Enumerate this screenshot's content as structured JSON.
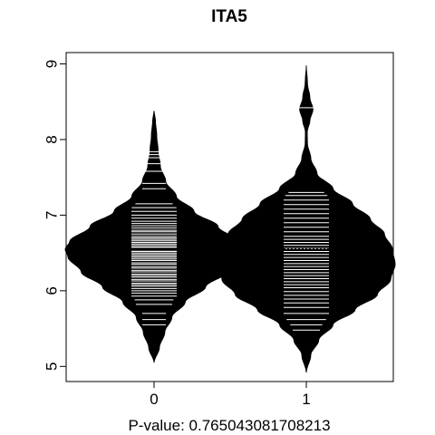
{
  "chart_data": {
    "type": "beanplot",
    "title": "ITA5",
    "xlabel": "P-value: 0.765043081708213",
    "ylabel": "",
    "ylim": [
      4.8,
      9.15
    ],
    "y_ticks": [
      5,
      6,
      7,
      8,
      9
    ],
    "overall_mean": 6.555,
    "categories": [
      "0",
      "1"
    ],
    "groups": [
      {
        "name": "0",
        "mean": 6.55,
        "range": [
          5.05,
          8.38
        ],
        "density_profile": [
          [
            5.05,
            0.0
          ],
          [
            5.25,
            0.06
          ],
          [
            5.45,
            0.12
          ],
          [
            5.65,
            0.2
          ],
          [
            5.85,
            0.35
          ],
          [
            6.05,
            0.58
          ],
          [
            6.25,
            0.82
          ],
          [
            6.45,
            0.97
          ],
          [
            6.55,
            1.0
          ],
          [
            6.65,
            0.95
          ],
          [
            6.85,
            0.72
          ],
          [
            7.05,
            0.45
          ],
          [
            7.25,
            0.25
          ],
          [
            7.45,
            0.13
          ],
          [
            7.65,
            0.07
          ],
          [
            7.85,
            0.045
          ],
          [
            8.05,
            0.03
          ],
          [
            8.25,
            0.015
          ],
          [
            8.38,
            0.0
          ]
        ],
        "observations": [
          5.55,
          5.62,
          5.7,
          5.82,
          5.88,
          5.93,
          5.97,
          6.0,
          6.03,
          6.06,
          6.08,
          6.1,
          6.13,
          6.15,
          6.18,
          6.2,
          6.22,
          6.25,
          6.27,
          6.3,
          6.32,
          6.35,
          6.37,
          6.4,
          6.42,
          6.44,
          6.46,
          6.48,
          6.5,
          6.52,
          6.54,
          6.56,
          6.58,
          6.6,
          6.62,
          6.64,
          6.66,
          6.68,
          6.7,
          6.72,
          6.75,
          6.78,
          6.8,
          6.83,
          6.86,
          6.89,
          6.92,
          6.96,
          7.0,
          7.05,
          7.1,
          7.15,
          7.35,
          7.42,
          7.58,
          7.68,
          7.76,
          7.8,
          7.84
        ]
      },
      {
        "name": "1",
        "mean": 6.58,
        "range": [
          4.92,
          8.98
        ],
        "density_profile": [
          [
            4.92,
            0.0
          ],
          [
            5.15,
            0.05
          ],
          [
            5.35,
            0.14
          ],
          [
            5.55,
            0.3
          ],
          [
            5.75,
            0.55
          ],
          [
            5.95,
            0.8
          ],
          [
            6.15,
            0.95
          ],
          [
            6.35,
            1.0
          ],
          [
            6.55,
            0.97
          ],
          [
            6.75,
            0.88
          ],
          [
            6.95,
            0.72
          ],
          [
            7.15,
            0.52
          ],
          [
            7.35,
            0.3
          ],
          [
            7.55,
            0.12
          ],
          [
            7.75,
            0.05
          ],
          [
            7.95,
            0.012
          ],
          [
            8.1,
            0.01
          ],
          [
            8.25,
            0.04
          ],
          [
            8.4,
            0.075
          ],
          [
            8.55,
            0.04
          ],
          [
            8.75,
            0.012
          ],
          [
            8.98,
            0.0
          ]
        ],
        "observations": [
          5.48,
          5.55,
          5.62,
          5.7,
          5.78,
          5.84,
          5.89,
          5.94,
          5.99,
          6.04,
          6.08,
          6.12,
          6.16,
          6.2,
          6.24,
          6.28,
          6.32,
          6.36,
          6.4,
          6.44,
          6.48,
          6.52,
          6.56,
          6.6,
          6.64,
          6.68,
          6.72,
          6.78,
          6.84,
          6.9,
          6.96,
          7.02,
          7.08,
          7.14,
          7.2,
          7.26,
          7.3,
          8.42
        ]
      }
    ]
  }
}
